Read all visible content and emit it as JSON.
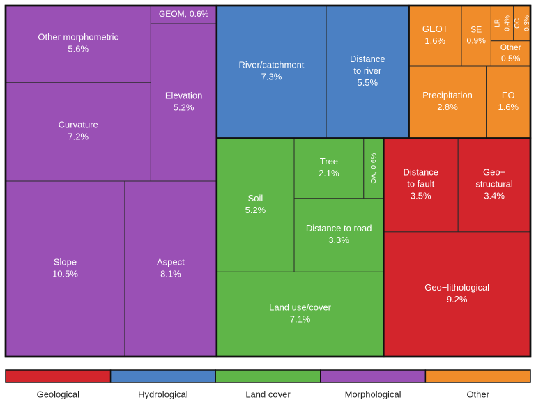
{
  "chart_data": {
    "type": "treemap",
    "series": [
      {
        "name": "Geological",
        "color": "#d3252c",
        "labels": [
          [
            "Distance",
            "to fault"
          ],
          [
            "Geo−",
            "structural"
          ],
          [
            "Geo−lithological"
          ]
        ],
        "values": [
          3.5,
          3.4,
          9.2
        ],
        "value_labels": [
          "3.5%",
          "3.4%",
          "9.2%"
        ]
      },
      {
        "name": "Hydrological",
        "color": "#4b80c3",
        "labels": [
          [
            "River/catchment"
          ],
          [
            "Distance",
            "to river"
          ]
        ],
        "values": [
          7.3,
          5.5
        ],
        "value_labels": [
          "7.3%",
          "5.5%"
        ]
      },
      {
        "name": "Land cover",
        "color": "#5fb548",
        "labels": [
          [
            "Soil"
          ],
          [
            "Tree"
          ],
          [
            "OA,"
          ],
          [
            "Distance to road"
          ],
          [
            "Land use/cover"
          ]
        ],
        "values": [
          5.2,
          2.1,
          0.6,
          3.3,
          7.1
        ],
        "value_labels": [
          "5.2%",
          "2.1%",
          "0.6%",
          "3.3%",
          "7.1%"
        ]
      },
      {
        "name": "Morphological",
        "color": "#9a50b5",
        "labels": [
          [
            "Other morphometric"
          ],
          [
            "GEOM,"
          ],
          [
            "Elevation"
          ],
          [
            "Curvature"
          ],
          [
            "Slope"
          ],
          [
            "Aspect"
          ]
        ],
        "values": [
          5.6,
          0.6,
          5.2,
          7.2,
          10.5,
          8.1
        ],
        "value_labels": [
          "5.6%",
          "0.6%",
          "5.2%",
          "7.2%",
          "10.5%",
          "8.1%"
        ]
      },
      {
        "name": "Other",
        "color": "#f08c2a",
        "labels": [
          [
            "GEOT"
          ],
          [
            "SE"
          ],
          [
            "LR"
          ],
          [
            "OC"
          ],
          [
            "Other"
          ],
          [
            "Precipitation"
          ],
          [
            "EO"
          ]
        ],
        "values": [
          1.6,
          0.9,
          0.4,
          0.3,
          0.5,
          2.8,
          1.6
        ],
        "value_labels": [
          "1.6%",
          "0.9%",
          "0.4%",
          "0.3%",
          "0.5%",
          "2.8%",
          "1.6%"
        ]
      }
    ]
  }
}
